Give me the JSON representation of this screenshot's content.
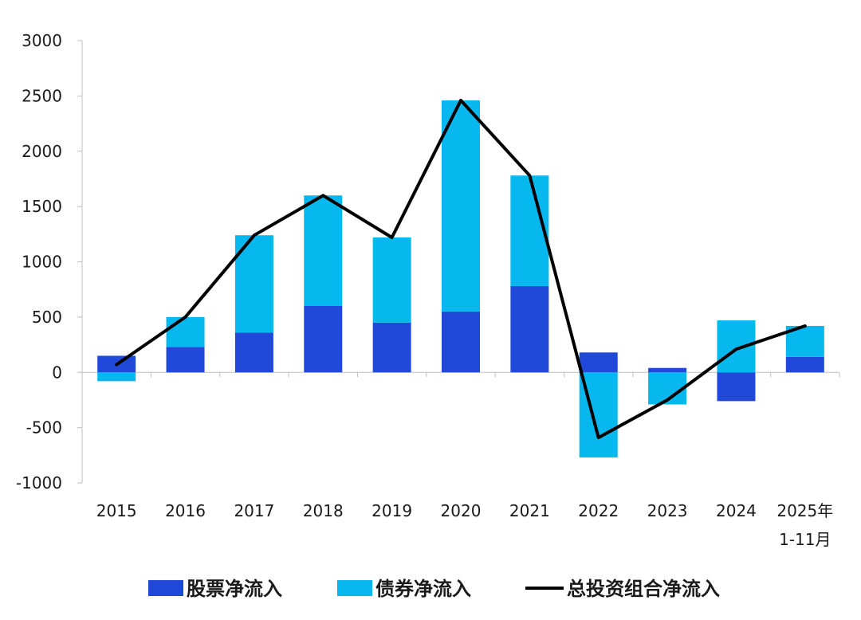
{
  "chart_data": {
    "type": "bar",
    "stacked": true,
    "categories": [
      "2015",
      "2016",
      "2017",
      "2018",
      "2019",
      "2020",
      "2021",
      "2022",
      "2023",
      "2024",
      "2025年\n1-11月"
    ],
    "series": [
      {
        "name": "股票净流入",
        "kind": "bar",
        "color": "#2149d9",
        "values": [
          150,
          230,
          360,
          600,
          450,
          550,
          780,
          180,
          40,
          -260,
          140
        ]
      },
      {
        "name": "债券净流入",
        "kind": "bar",
        "color": "#06b8ee",
        "values": [
          -80,
          270,
          880,
          1000,
          770,
          1910,
          1000,
          -770,
          -290,
          470,
          280
        ]
      },
      {
        "name": "总投资组合净流入",
        "kind": "line",
        "color": "#000000",
        "values": [
          70,
          500,
          1240,
          1600,
          1220,
          2460,
          1780,
          -590,
          -250,
          210,
          420
        ]
      }
    ],
    "ylim": [
      -1000,
      3000
    ],
    "yticks": [
      3000,
      2500,
      2000,
      1500,
      1000,
      500,
      0,
      -500,
      -1000
    ],
    "grid": false,
    "legend_position": "bottom"
  }
}
